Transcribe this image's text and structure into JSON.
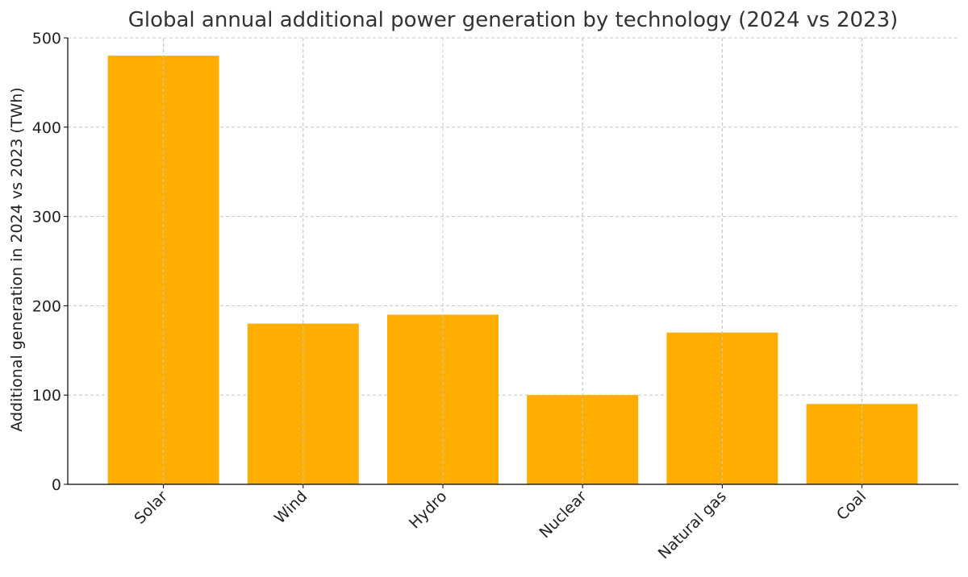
{
  "chart_data": {
    "type": "bar",
    "title": "Global annual additional power generation by technology (2024 vs 2023)",
    "xlabel": "",
    "ylabel": "Additional generation in 2024 vs 2023 (TWh)",
    "categories": [
      "Solar",
      "Wind",
      "Hydro",
      "Nuclear",
      "Natural gas",
      "Coal"
    ],
    "values": [
      480,
      180,
      190,
      100,
      170,
      90
    ],
    "ylim": [
      0,
      500
    ],
    "yticks": [
      0,
      100,
      200,
      300,
      400,
      500
    ],
    "grid": true,
    "bar_color": "#FFAE00"
  }
}
